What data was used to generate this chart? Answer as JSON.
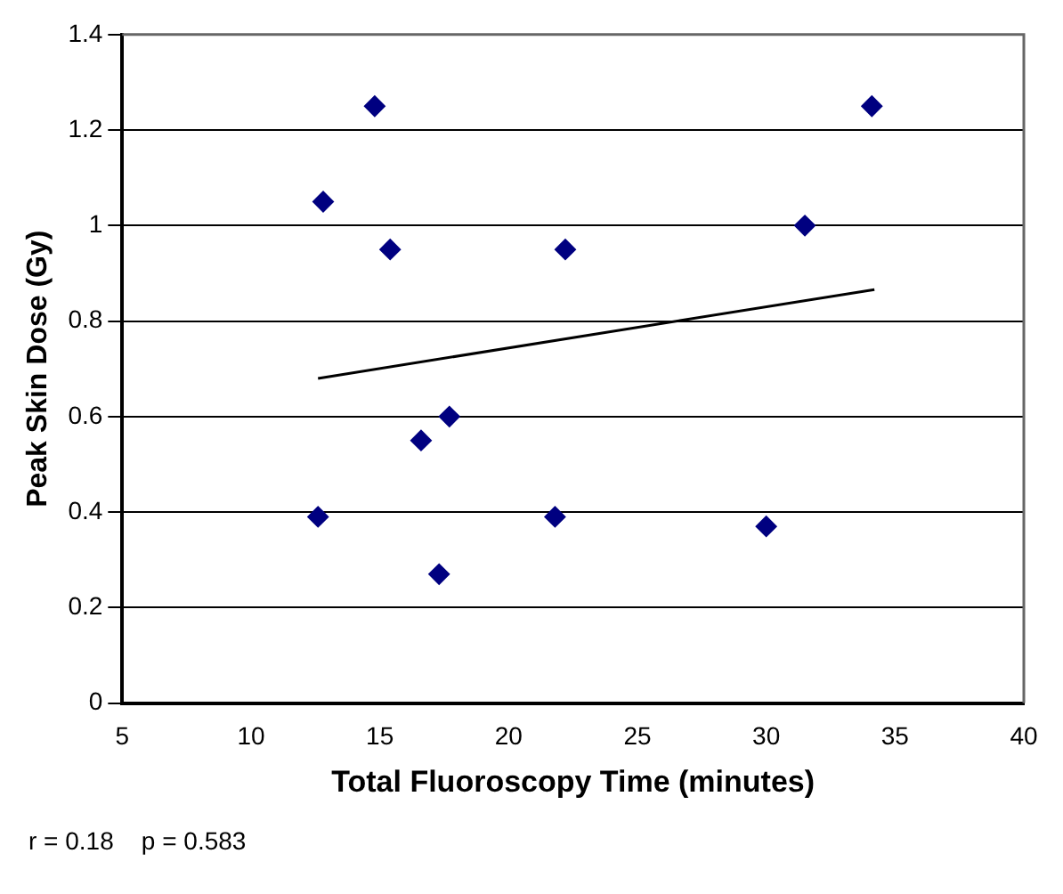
{
  "chart_data": {
    "type": "scatter",
    "xlabel": "Total Fluoroscopy Time (minutes)",
    "ylabel": "Peak Skin Dose (Gy)",
    "annotations": [
      "r = 0.18    p = 0.583"
    ],
    "series": [
      {
        "type": "scatter",
        "color": "#000080",
        "marker": "diamond",
        "x": [
          14.8,
          12.8,
          15.4,
          22.2,
          17.7,
          16.6,
          12.6,
          21.8,
          17.3,
          34.1,
          31.5,
          30.0
        ],
        "values": [
          1.25,
          1.05,
          0.95,
          0.95,
          0.6,
          0.55,
          0.39,
          0.39,
          0.27,
          1.25,
          1.0,
          0.37
        ]
      },
      {
        "type": "line",
        "color": "#000000",
        "marker": "none",
        "x": [
          12.6,
          34.2
        ],
        "values": [
          0.68,
          0.866
        ]
      }
    ],
    "xlim": [
      5,
      40
    ],
    "xticks": [
      5,
      10,
      15,
      20,
      25,
      30,
      35,
      40
    ],
    "ylim": [
      0,
      1.4
    ],
    "yticks": [
      0,
      0.2,
      0.4,
      0.6,
      0.8,
      1,
      1.2,
      1.4
    ],
    "grid": "y",
    "legend": false
  }
}
